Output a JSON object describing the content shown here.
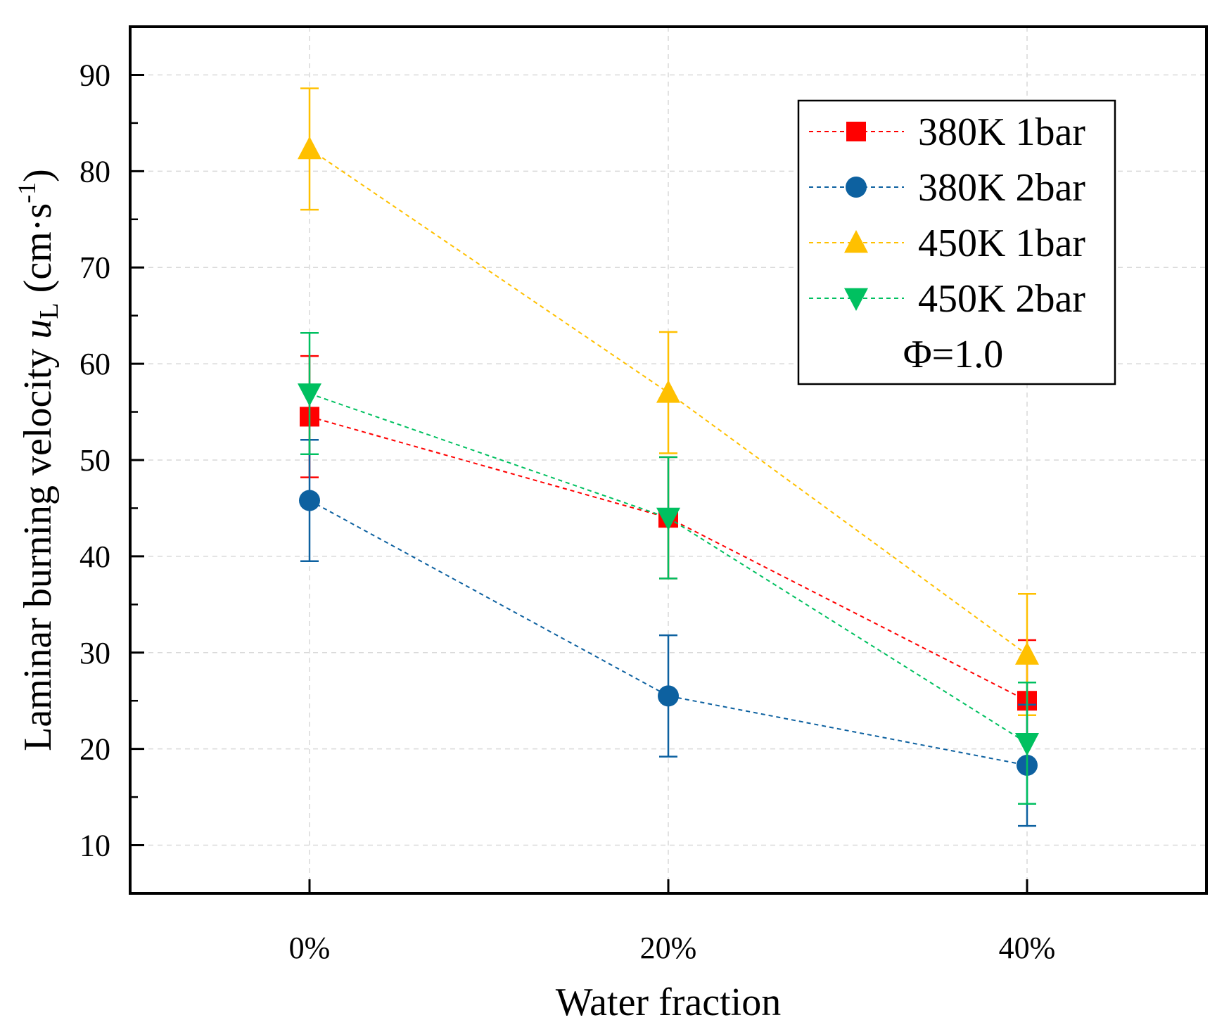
{
  "chart_data": {
    "type": "line",
    "title": "",
    "xlabel": "Water fraction",
    "ylabel": {
      "prefix": "Laminar burning velocity ",
      "symbol": "u",
      "subscript": "L",
      "unit_open": " (cm·s",
      "unit_exp": "-1",
      "unit_close": ")"
    },
    "categories": [
      "0%",
      "20%",
      "40%"
    ],
    "ylim": [
      5,
      95
    ],
    "yticks": [
      10,
      20,
      30,
      40,
      50,
      60,
      70,
      80,
      90
    ],
    "grid": true,
    "legend_position": "top-right",
    "annotation": "Φ=1.0",
    "series": [
      {
        "name": "380K 1bar",
        "color": "#ff0000",
        "marker": "square",
        "values": [
          54.5,
          44.0,
          25.0
        ],
        "error": [
          6.3,
          6.3,
          6.3
        ]
      },
      {
        "name": "380K 2bar",
        "color": "#0d61a0",
        "marker": "circle",
        "values": [
          45.8,
          25.5,
          18.3
        ],
        "error": [
          6.3,
          6.3,
          6.3
        ]
      },
      {
        "name": "450K 1bar",
        "color": "#ffc000",
        "marker": "triangle-up",
        "values": [
          82.3,
          57.0,
          29.8
        ],
        "error": [
          6.3,
          6.3,
          6.3
        ]
      },
      {
        "name": "450K 2bar",
        "color": "#00c060",
        "marker": "triangle-down",
        "values": [
          56.9,
          44.0,
          20.6
        ],
        "error": [
          6.3,
          6.3,
          6.3
        ]
      }
    ]
  }
}
